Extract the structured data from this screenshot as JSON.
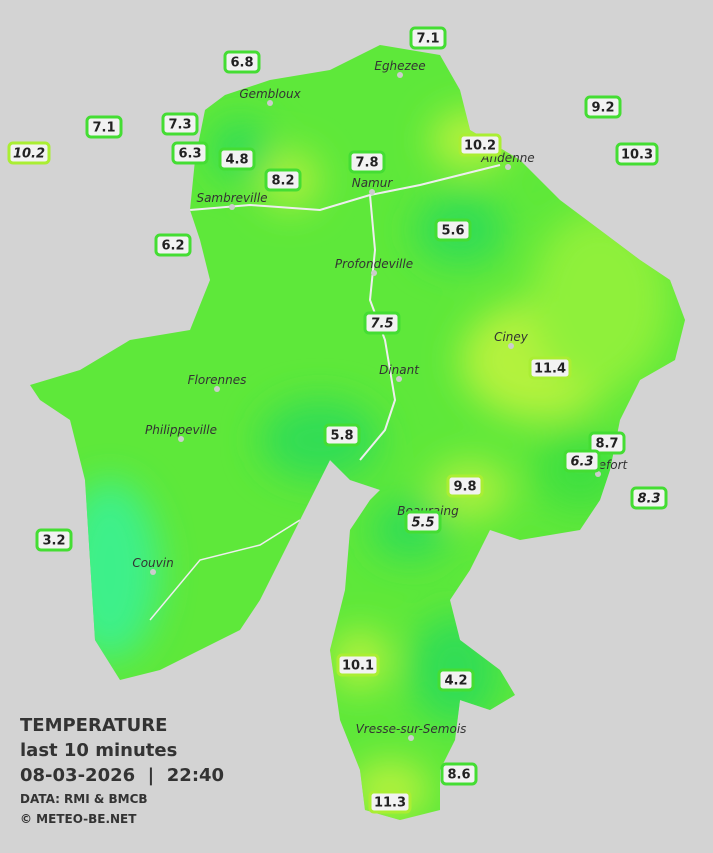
{
  "legend": {
    "title": "TEMPERATURE",
    "subtitle": "last 10 minutes",
    "datetime": "08-03-2026  |  22:40",
    "source": "DATA: RMI & BMCB",
    "credit": "© METEO-BE.NET"
  },
  "stations": [
    7.1,
    6.8,
    9.2,
    7.1,
    7.3,
    10.2,
    10.2,
    10.3,
    6.3,
    4.8,
    7.8,
    8.2,
    5.6,
    6.2,
    7.5,
    11.4,
    5.8,
    8.7,
    6.3,
    9.8,
    8.3,
    5.5,
    3.2,
    10.1,
    4.2,
    8.6,
    11.3
  ],
  "cities": [
    "Eghezee",
    "Gembloux",
    "Andenne",
    "Namur",
    "Sambreville",
    "Profondeville",
    "Ciney",
    "Dinant",
    "Florennes",
    "Philippeville",
    "Couvin",
    "Vresse-sur-Semois",
    "Beauraing",
    "Rochefort"
  ]
}
